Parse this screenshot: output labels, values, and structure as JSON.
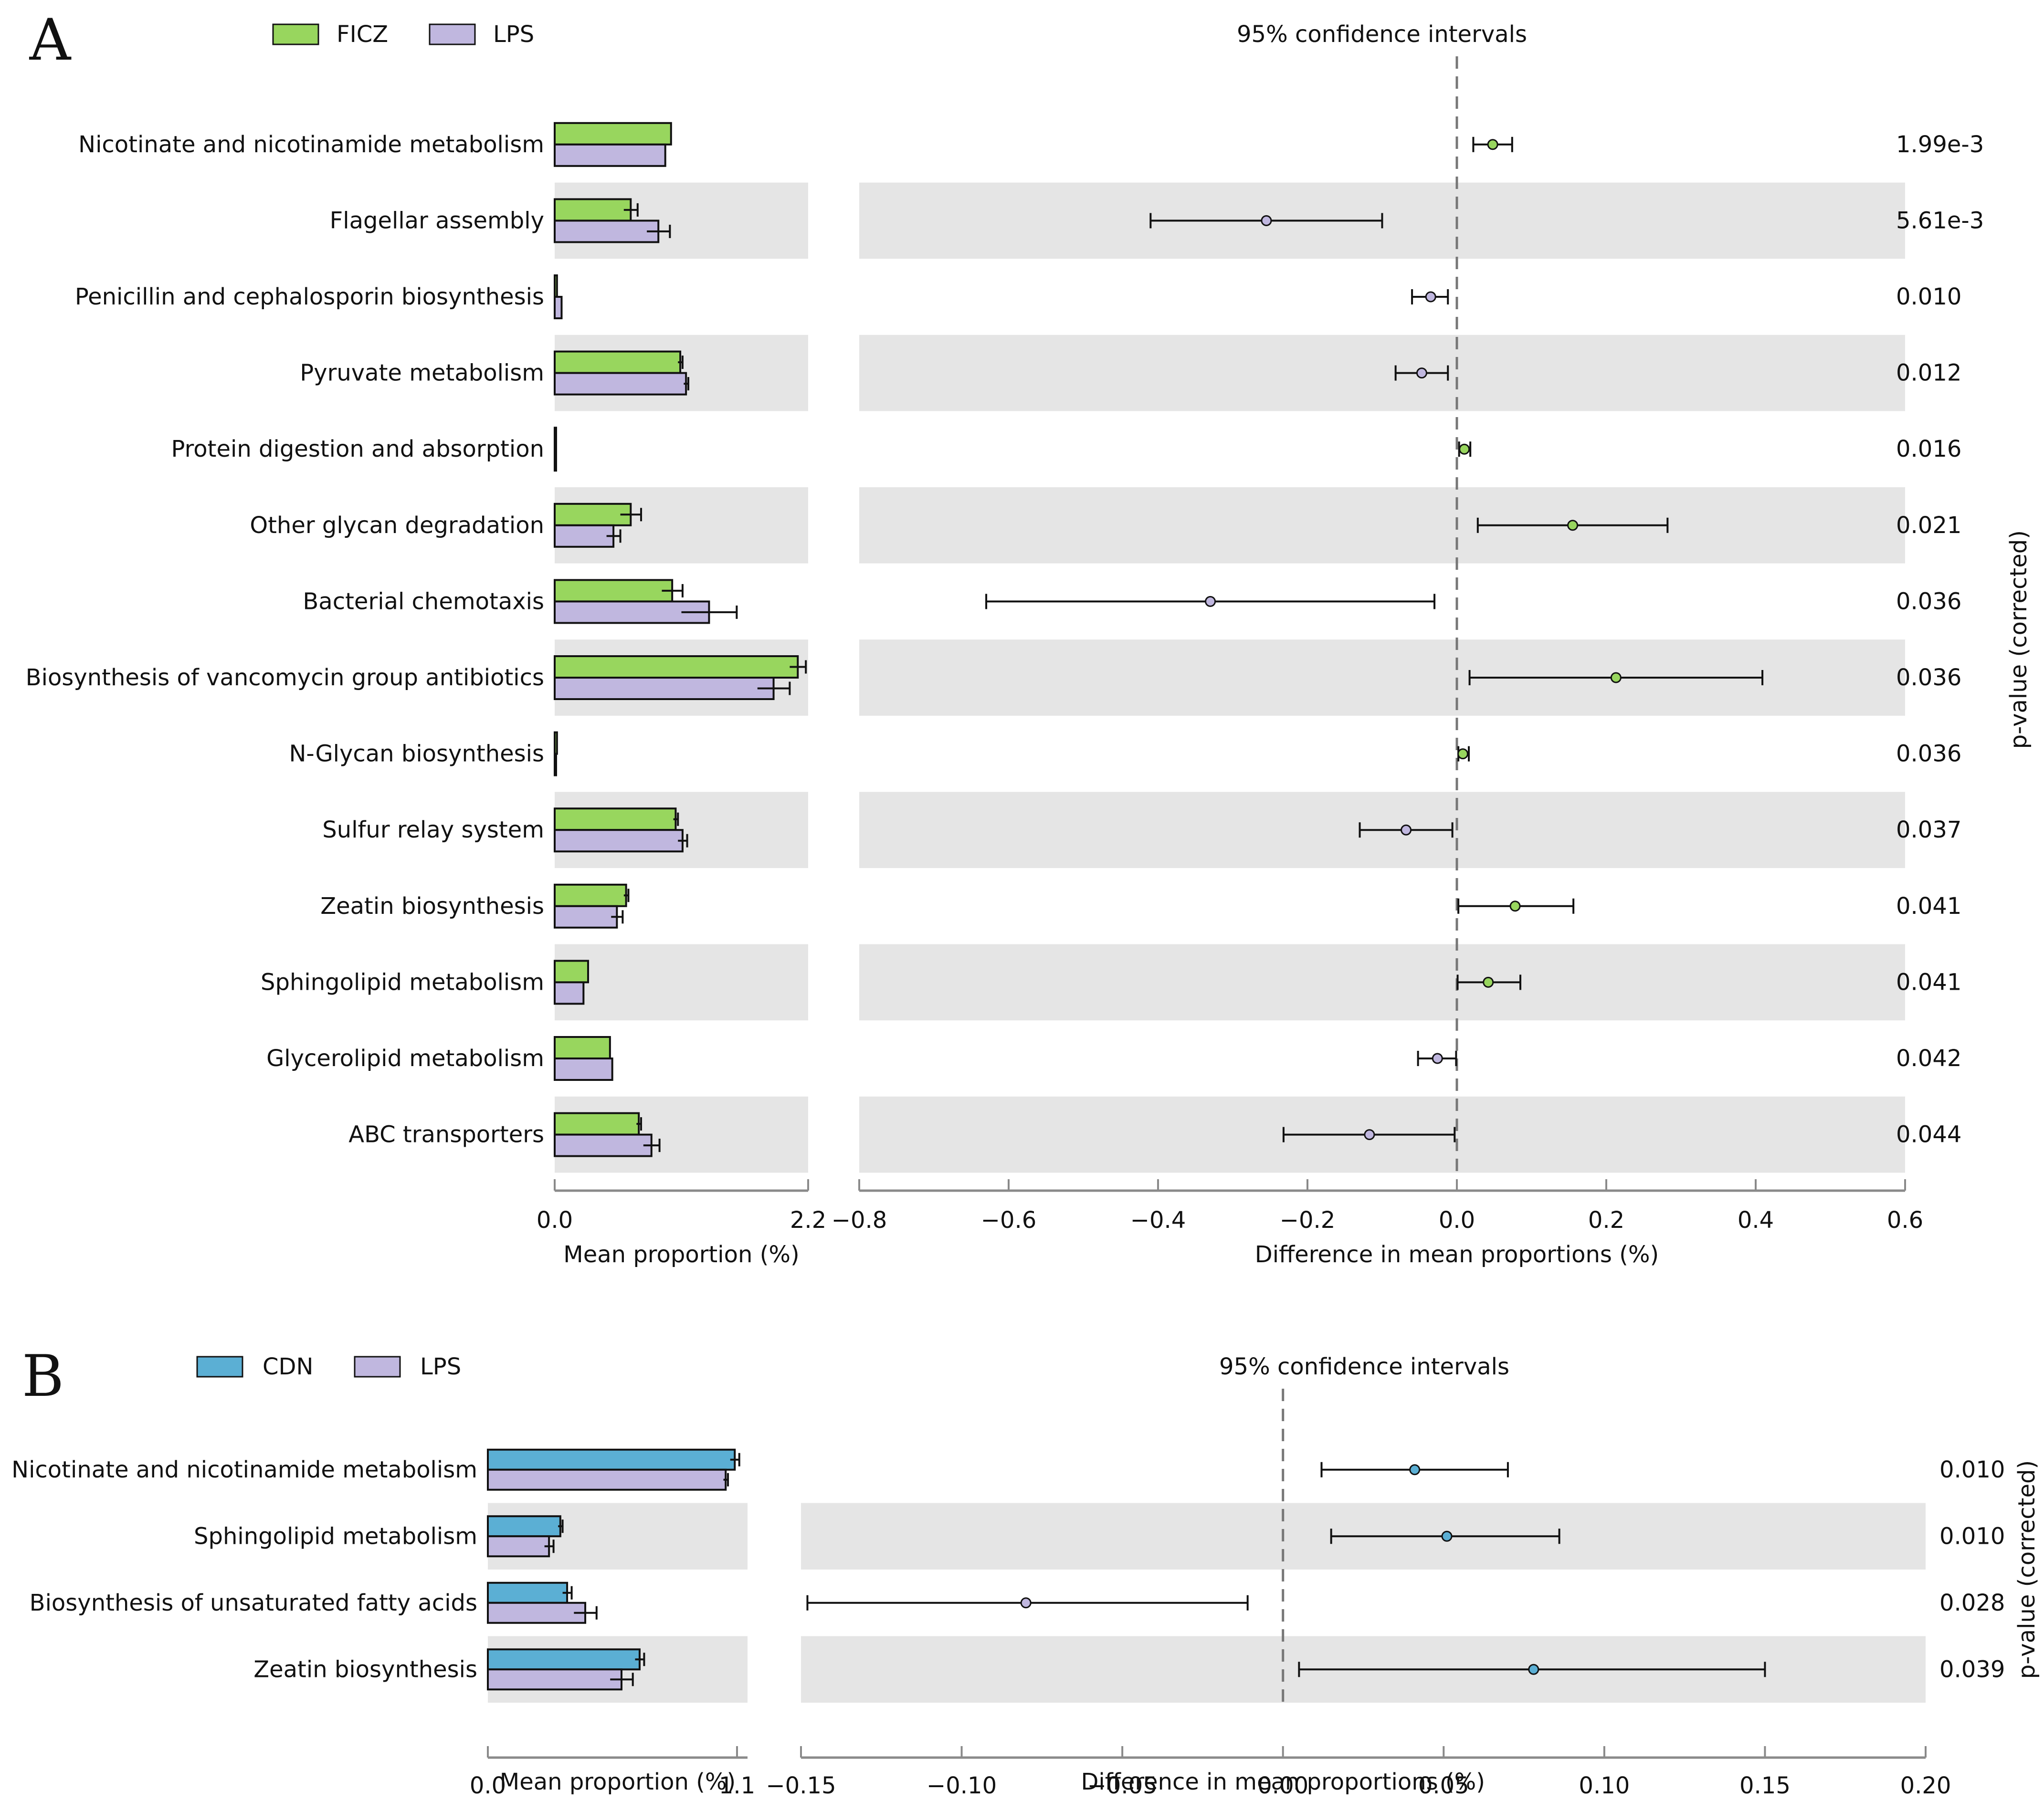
{
  "chart_data": [
    {
      "type": "extended-error-bar",
      "panel_label": "A",
      "legend": [
        {
          "name": "FICZ",
          "color": "#98d65e"
        },
        {
          "name": "LPS",
          "color": "#c0b7df"
        }
      ],
      "ci_title": "95% confidence intervals",
      "left_xlabel": "Mean proportion (%)",
      "right_xlabel": "Difference in mean proportions (%)",
      "pvalue_label": "p-value (corrected)",
      "left_ticks": [
        "0.0",
        "2.2"
      ],
      "left_xlim": [
        0,
        2.2
      ],
      "right_ticks": [
        "−0.8",
        "−0.6",
        "−0.4",
        "−0.2",
        "0.0",
        "0.2",
        "0.4",
        "0.6"
      ],
      "right_tick_values": [
        -0.8,
        -0.6,
        -0.4,
        -0.2,
        0.0,
        0.2,
        0.4,
        0.6
      ],
      "right_xlim": [
        -0.8,
        0.6
      ],
      "rows": [
        {
          "label": "Nicotinate and nicotinamide metabolism",
          "g1": 1.01,
          "g1err": 0.0,
          "g2": 0.96,
          "g2err": 0.0,
          "diff": 0.048,
          "lo": 0.022,
          "hi": 0.074,
          "pvalue": "1.99e-3",
          "dot": "g1"
        },
        {
          "label": "Flagellar assembly",
          "g1": 0.66,
          "g1err": 0.06,
          "g2": 0.9,
          "g2err": 0.1,
          "diff": -0.255,
          "lo": -0.41,
          "hi": -0.1,
          "pvalue": "5.61e-3",
          "dot": "g2"
        },
        {
          "label": "Penicillin and cephalosporin biosynthesis",
          "g1": 0.02,
          "g1err": 0.0,
          "g2": 0.06,
          "g2err": 0.0,
          "diff": -0.035,
          "lo": -0.06,
          "hi": -0.012,
          "pvalue": "0.010",
          "dot": "g2"
        },
        {
          "label": "Pyruvate metabolism",
          "g1": 1.09,
          "g1err": 0.02,
          "g2": 1.14,
          "g2err": 0.02,
          "diff": -0.047,
          "lo": -0.082,
          "hi": -0.012,
          "pvalue": "0.012",
          "dot": "g2"
        },
        {
          "label": "Protein digestion and absorption",
          "g1": 0.01,
          "g1err": 0.0,
          "g2": 0.0,
          "g2err": 0.0,
          "diff": 0.01,
          "lo": 0.003,
          "hi": 0.018,
          "pvalue": "0.016",
          "dot": "g1"
        },
        {
          "label": "Other glycan degradation",
          "g1": 0.66,
          "g1err": 0.09,
          "g2": 0.51,
          "g2err": 0.06,
          "diff": 0.155,
          "lo": 0.028,
          "hi": 0.282,
          "pvalue": "0.021",
          "dot": "g1"
        },
        {
          "label": "Bacterial chemotaxis",
          "g1": 1.02,
          "g1err": 0.09,
          "g2": 1.34,
          "g2err": 0.24,
          "diff": -0.33,
          "lo": -0.63,
          "hi": -0.03,
          "pvalue": "0.036",
          "dot": "g2"
        },
        {
          "label": "Biosynthesis of vancomycin group antibiotics",
          "g1": 2.11,
          "g1err": 0.07,
          "g2": 1.9,
          "g2err": 0.14,
          "diff": 0.213,
          "lo": 0.017,
          "hi": 0.409,
          "pvalue": "0.036",
          "dot": "g1"
        },
        {
          "label": "N-Glycan biosynthesis",
          "g1": 0.02,
          "g1err": 0.0,
          "g2": 0.01,
          "g2err": 0.0,
          "diff": 0.008,
          "lo": 0.002,
          "hi": 0.016,
          "pvalue": "0.036",
          "dot": "g1"
        },
        {
          "label": "Sulfur relay system",
          "g1": 1.05,
          "g1err": 0.02,
          "g2": 1.11,
          "g2err": 0.04,
          "diff": -0.068,
          "lo": -0.13,
          "hi": -0.006,
          "pvalue": "0.037",
          "dot": "g2"
        },
        {
          "label": "Zeatin biosynthesis",
          "g1": 0.62,
          "g1err": 0.02,
          "g2": 0.54,
          "g2err": 0.05,
          "diff": 0.078,
          "lo": 0.002,
          "hi": 0.156,
          "pvalue": "0.041",
          "dot": "g1"
        },
        {
          "label": "Sphingolipid metabolism",
          "g1": 0.29,
          "g1err": 0.0,
          "g2": 0.25,
          "g2err": 0.0,
          "diff": 0.042,
          "lo": 0.001,
          "hi": 0.085,
          "pvalue": "0.041",
          "dot": "g1"
        },
        {
          "label": "Glycerolipid metabolism",
          "g1": 0.48,
          "g1err": 0.0,
          "g2": 0.5,
          "g2err": 0.0,
          "diff": -0.026,
          "lo": -0.052,
          "hi": -0.001,
          "pvalue": "0.042",
          "dot": "g2"
        },
        {
          "label": "ABC transporters",
          "g1": 0.73,
          "g1err": 0.02,
          "g2": 0.84,
          "g2err": 0.07,
          "diff": -0.117,
          "lo": -0.232,
          "hi": -0.003,
          "pvalue": "0.044",
          "dot": "g2"
        }
      ]
    },
    {
      "type": "extended-error-bar",
      "panel_label": "B",
      "legend": [
        {
          "name": "CDN",
          "color": "#5bafd4"
        },
        {
          "name": "LPS",
          "color": "#c0b7df"
        }
      ],
      "ci_title": "95% confidence intervals",
      "left_xlabel": "Mean proportion (%)",
      "right_xlabel": "Difference in mean proportions (%)",
      "pvalue_label": "p-value (corrected)",
      "left_ticks": [
        "0.0",
        "1.1"
      ],
      "left_xlim": [
        0,
        1.1
      ],
      "right_ticks": [
        "−0.15",
        "−0.10",
        "−0.05",
        "0.00",
        "0.05",
        "0.10",
        "0.15",
        "0.20"
      ],
      "right_tick_values": [
        -0.15,
        -0.1,
        -0.05,
        0.0,
        0.05,
        0.1,
        0.15,
        0.2
      ],
      "right_xlim": [
        -0.15,
        0.2
      ],
      "rows": [
        {
          "label": "Nicotinate and nicotinamide metabolism",
          "g1": 1.09,
          "g1err": 0.02,
          "g2": 1.05,
          "g2err": 0.01,
          "diff": 0.041,
          "lo": 0.012,
          "hi": 0.07,
          "pvalue": "0.010",
          "dot": "g1"
        },
        {
          "label": "Sphingolipid metabolism",
          "g1": 0.32,
          "g1err": 0.01,
          "g2": 0.27,
          "g2err": 0.02,
          "diff": 0.051,
          "lo": 0.015,
          "hi": 0.086,
          "pvalue": "0.010",
          "dot": "g1"
        },
        {
          "label": "Biosynthesis of unsaturated fatty acids",
          "g1": 0.35,
          "g1err": 0.02,
          "g2": 0.43,
          "g2err": 0.05,
          "diff": -0.08,
          "lo": -0.148,
          "hi": -0.011,
          "pvalue": "0.028",
          "dot": "g2"
        },
        {
          "label": "Zeatin biosynthesis",
          "g1": 0.67,
          "g1err": 0.02,
          "g2": 0.59,
          "g2err": 0.05,
          "diff": 0.078,
          "lo": 0.005,
          "hi": 0.15,
          "pvalue": "0.039",
          "dot": "g1"
        }
      ]
    }
  ]
}
